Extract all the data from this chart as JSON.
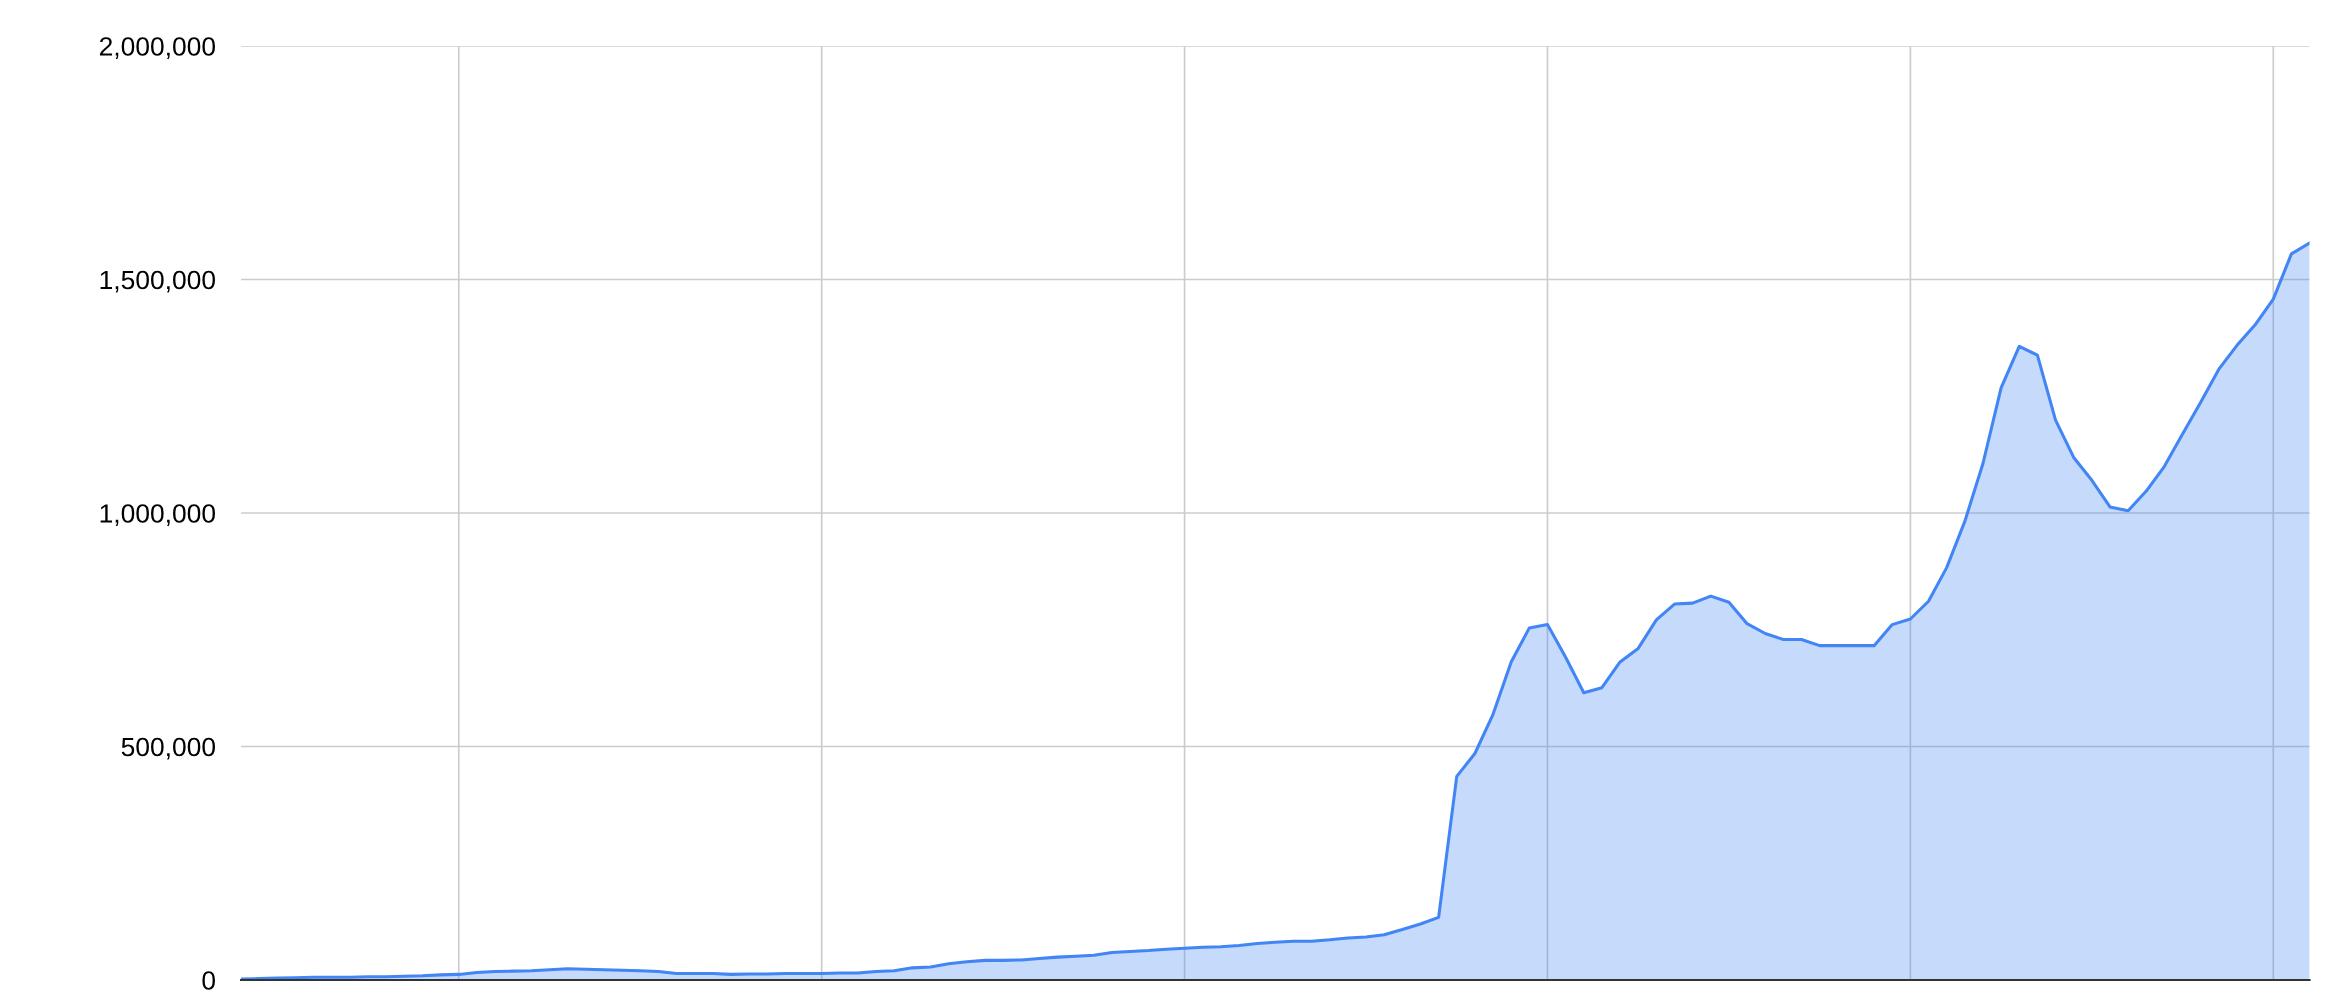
{
  "chart_data": {
    "type": "area",
    "categories": [
      null,
      null,
      null,
      null,
      null,
      null,
      null,
      null,
      null,
      null,
      null,
      null,
      null,
      null,
      null,
      null,
      null,
      null,
      null,
      null,
      null,
      null,
      null,
      null,
      null,
      null,
      null,
      null,
      null,
      null,
      null,
      null,
      null,
      null,
      null,
      null,
      null,
      null,
      null,
      null,
      null,
      null,
      null,
      null,
      null,
      null,
      null,
      null,
      null,
      null,
      null,
      null,
      null,
      null,
      null,
      null,
      null,
      null,
      null,
      null,
      null,
      null,
      null,
      null,
      null,
      null,
      null,
      null,
      null,
      null,
      null,
      null,
      null,
      null,
      null,
      null,
      null,
      null,
      null,
      null,
      null,
      null,
      null,
      null,
      null,
      null,
      null,
      null,
      null,
      null,
      null,
      null,
      null,
      null,
      null,
      null,
      null,
      null,
      null,
      null,
      null,
      null,
      null,
      null,
      null,
      null,
      null,
      null,
      null,
      null,
      null,
      null,
      null,
      null,
      null
    ],
    "series": [
      {
        "color": "#4285f4",
        "values": [
          2000,
          3000,
          4000,
          5000,
          6000,
          6000,
          6000,
          7000,
          7000,
          8000,
          9000,
          11000,
          12000,
          16000,
          18000,
          19000,
          20000,
          22000,
          24000,
          23000,
          22000,
          21000,
          20000,
          18000,
          14000,
          14000,
          14000,
          12000,
          13000,
          13000,
          14000,
          14000,
          14000,
          15000,
          15000,
          18000,
          20000,
          26000,
          28000,
          35000,
          39000,
          42000,
          42000,
          43000,
          46000,
          49000,
          51000,
          53000,
          59000,
          61000,
          63000,
          66000,
          68000,
          70000,
          71000,
          74000,
          78000,
          81000,
          83000,
          83000,
          86000,
          90000,
          92000,
          97000,
          108000,
          120000,
          134000,
          436000,
          485000,
          569000,
          681000,
          754000,
          761000,
          691000,
          615000,
          626000,
          681000,
          710000,
          771000,
          805000,
          807000,
          822000,
          809000,
          763000,
          742000,
          729000,
          729000,
          716000,
          716000,
          716000,
          716000,
          761000,
          773000,
          811000,
          883000,
          982000,
          1106000,
          1268000,
          1357000,
          1338000,
          1199000,
          1119000,
          1070000,
          1013000,
          1005000,
          1047000,
          1100000,
          1169000,
          1237000,
          1308000,
          1359000,
          1403000,
          1458000,
          1555000,
          1578000
        ]
      }
    ],
    "ylim": [
      0,
      2000000
    ],
    "yticks": [
      {
        "value": 0,
        "label": "0"
      },
      {
        "value": 500000,
        "label": "500,000"
      },
      {
        "value": 1000000,
        "label": "1,000,000"
      },
      {
        "value": 1500000,
        "label": "1,500,000"
      },
      {
        "value": 2000000,
        "label": "2,000,000"
      }
    ],
    "grid": true,
    "tick_labels": "y"
  }
}
